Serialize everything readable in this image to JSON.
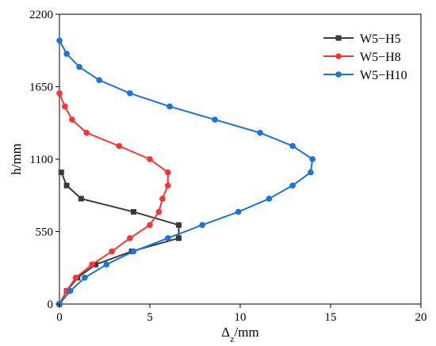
{
  "chart_data": {
    "type": "line",
    "title": "",
    "xlabel": "Δz/mm",
    "ylabel": "h/mm",
    "xlim": [
      0,
      20
    ],
    "ylim": [
      0,
      2200
    ],
    "xticks": [
      0,
      5,
      10,
      15,
      20
    ],
    "yticks": [
      0,
      550,
      1100,
      1650,
      2200
    ],
    "grid": false,
    "legend": "top-right",
    "series": [
      {
        "name": "W5−H5",
        "color": "#3a3a3a",
        "marker": "square",
        "points": [
          [
            0.0,
            0
          ],
          [
            0.4,
            100
          ],
          [
            1.0,
            200
          ],
          [
            2.0,
            300
          ],
          [
            4.0,
            400
          ],
          [
            6.6,
            500
          ],
          [
            6.6,
            600
          ],
          [
            4.1,
            700
          ],
          [
            1.2,
            800
          ],
          [
            0.4,
            900
          ],
          [
            0.1,
            1000
          ]
        ]
      },
      {
        "name": "W5−H8",
        "color": "#ff3333",
        "marker": "circle",
        "points": [
          [
            0.0,
            0
          ],
          [
            0.4,
            100
          ],
          [
            0.9,
            200
          ],
          [
            1.8,
            300
          ],
          [
            2.9,
            400
          ],
          [
            3.9,
            500
          ],
          [
            5.0,
            600
          ],
          [
            5.5,
            700
          ],
          [
            5.7,
            800
          ],
          [
            6.0,
            900
          ],
          [
            6.0,
            1000
          ],
          [
            5.0,
            1100
          ],
          [
            3.3,
            1200
          ],
          [
            1.5,
            1300
          ],
          [
            0.7,
            1400
          ],
          [
            0.3,
            1500
          ],
          [
            0.0,
            1600
          ]
        ]
      },
      {
        "name": "W5−H10",
        "color": "#1a74d9",
        "marker": "circle",
        "points": [
          [
            0.0,
            0
          ],
          [
            0.6,
            100
          ],
          [
            1.4,
            200
          ],
          [
            2.6,
            300
          ],
          [
            4.1,
            400
          ],
          [
            6.0,
            500
          ],
          [
            7.9,
            600
          ],
          [
            9.9,
            700
          ],
          [
            11.6,
            800
          ],
          [
            12.9,
            900
          ],
          [
            13.9,
            1000
          ],
          [
            14.0,
            1100
          ],
          [
            12.9,
            1200
          ],
          [
            11.1,
            1300
          ],
          [
            8.6,
            1400
          ],
          [
            6.1,
            1500
          ],
          [
            3.9,
            1600
          ],
          [
            2.2,
            1700
          ],
          [
            1.1,
            1800
          ],
          [
            0.4,
            1900
          ],
          [
            0.0,
            2000
          ]
        ]
      }
    ]
  }
}
